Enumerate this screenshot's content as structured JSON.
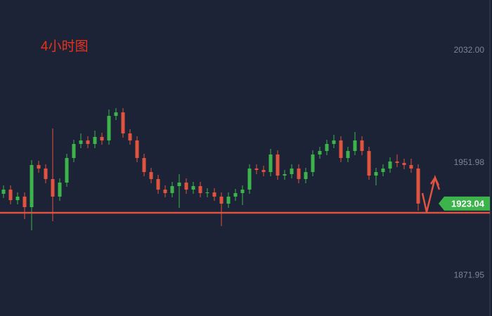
{
  "chart_data": {
    "type": "candlestick",
    "title": "4小时图",
    "open": [
      1930,
      1933,
      1925.5,
      1928,
      1920.5,
      1950.5,
      1948,
      1940.5,
      1928,
      1938,
      1955.5,
      1965.5,
      1968,
      1965.5,
      1970.5,
      1968,
      1985.5,
      1988,
      1973,
      1968,
      1955.5,
      1945.5,
      1940.5,
      1933,
      1930.5,
      1935.5,
      1938,
      1933,
      1935.5,
      1930.5,
      1931,
      1928,
      1923,
      1928,
      1930.5,
      1933,
      1948,
      1947,
      1945.5,
      1958,
      1943,
      1944,
      1948,
      1940.5,
      1945.5,
      1958,
      1960.5,
      1965.5,
      1968,
      1955.5,
      1960.5,
      1968,
      1960.5,
      1943,
      1945.5,
      1948,
      1953,
      1952,
      1950.5,
      1948
    ],
    "high": [
      1936,
      1936,
      1931,
      1931,
      1954,
      1953.5,
      1951,
      1976.5,
      1941,
      1958.5,
      1968.5,
      1973,
      1971,
      1975,
      1973.5,
      1990,
      1991,
      1991,
      1976,
      1971,
      1958.5,
      1948.5,
      1943.5,
      1936,
      1938.5,
      1944,
      1941,
      1938.5,
      1938.5,
      1934,
      1934,
      1931,
      1931,
      1933.5,
      1936,
      1951,
      1951,
      1950,
      1962,
      1961,
      1947,
      1951,
      1951,
      1948.5,
      1961,
      1963.5,
      1968.5,
      1972,
      1971,
      1963.5,
      1974,
      1971,
      1963.5,
      1948.5,
      1951,
      1956,
      1958,
      1955,
      1955,
      1951
    ],
    "low": [
      1927,
      1922.5,
      1922.5,
      1912,
      1904,
      1945,
      1937.5,
      1910.5,
      1925,
      1935,
      1952.5,
      1962.5,
      1962.5,
      1962.5,
      1965,
      1965,
      1982.5,
      1970,
      1965,
      1952.5,
      1942.5,
      1937.5,
      1930,
      1927.5,
      1927.5,
      1920,
      1930,
      1930,
      1927.5,
      1927.5,
      1925,
      1907,
      1920,
      1925,
      1922,
      1930,
      1944,
      1942.5,
      1942.5,
      1940,
      1940,
      1941,
      1937.5,
      1937.5,
      1942.5,
      1955,
      1957.5,
      1962.5,
      1952.5,
      1952.5,
      1957.5,
      1957.5,
      1940,
      1936,
      1942.5,
      1945,
      1949,
      1947.5,
      1945,
      1918
    ],
    "close": [
      1933,
      1925.5,
      1928,
      1920.5,
      1950.5,
      1948,
      1940.5,
      1928,
      1938,
      1955.5,
      1965.5,
      1968,
      1965.5,
      1970.5,
      1968,
      1985.5,
      1988,
      1973,
      1968,
      1955.5,
      1945.5,
      1940.5,
      1933,
      1930.5,
      1935.5,
      1938,
      1933,
      1935.5,
      1930.5,
      1931,
      1928,
      1923,
      1928,
      1930.5,
      1933,
      1948,
      1947,
      1945.5,
      1958,
      1943,
      1944,
      1948,
      1940.5,
      1945.5,
      1958,
      1960.5,
      1965.5,
      1968,
      1955.5,
      1960.5,
      1968,
      1960.5,
      1943,
      1945.5,
      1948,
      1953,
      1952,
      1950.5,
      1948,
      1923.04
    ],
    "up_color": "#3cb44b",
    "down_color": "#e0533f",
    "ylim": [
      1843,
      2068
    ],
    "yticks": [
      {
        "value": 2032,
        "label": "2032.00"
      },
      1951.98,
      1871.95
    ],
    "last_price": 1923.04,
    "last_price_color": "#3cb44b",
    "support_line": 1916.5,
    "support_color": "#e0533f"
  }
}
